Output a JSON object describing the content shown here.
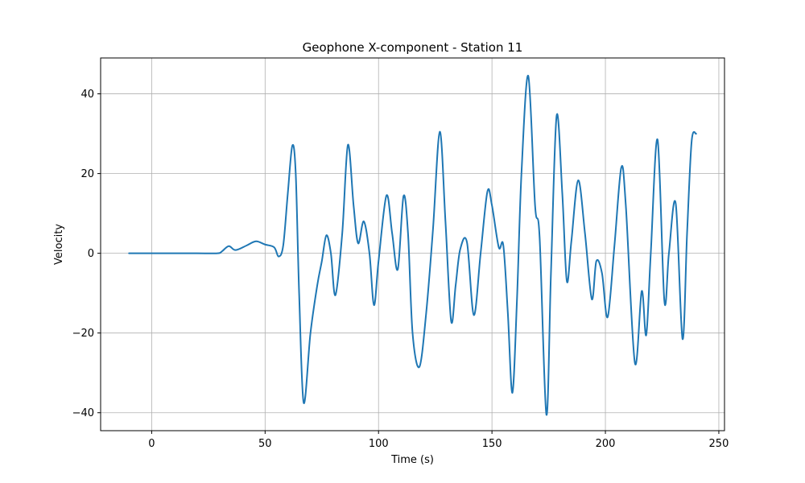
{
  "chart_data": {
    "type": "line",
    "title": "Geophone X-component - Station 11",
    "xlabel": "Time (s)",
    "ylabel": "Velocity",
    "xlim": [
      -22.5,
      252.5
    ],
    "ylim": [
      -44.5,
      49
    ],
    "xticks": [
      0,
      50,
      100,
      150,
      200,
      250
    ],
    "yticks": [
      -40,
      -20,
      0,
      20,
      40
    ],
    "grid": true,
    "series": [
      {
        "color": "#1f77b4",
        "x": [
          -10,
          0,
          10,
          20,
          29,
          31,
          34,
          37,
          42,
          46,
          50,
          54,
          56,
          58,
          60,
          62,
          63.5,
          65,
          67,
          70,
          73,
          75,
          77,
          79,
          81,
          84,
          86.5,
          89,
          91,
          93.5,
          96,
          98,
          100,
          103.5,
          106,
          108.5,
          111,
          113,
          115,
          118,
          121,
          124,
          127,
          129.5,
          132,
          134,
          136,
          139,
          142,
          145,
          148,
          150,
          153,
          155,
          157,
          159,
          161,
          163,
          166,
          169,
          171,
          174,
          176,
          178.5,
          181,
          183,
          185,
          188,
          191,
          194,
          196,
          198.5,
          201,
          204,
          207,
          209,
          213,
          216,
          218,
          220,
          223,
          226,
          228,
          231,
          234,
          236,
          238,
          240
        ],
        "y": [
          0,
          0,
          0,
          0,
          0,
          0.5,
          1.8,
          0.8,
          2,
          3,
          2.2,
          1.5,
          -0.8,
          2,
          15,
          27,
          20,
          -10,
          -37.5,
          -20,
          -8,
          -2,
          4.5,
          0,
          -10.5,
          5,
          27.2,
          12,
          2.5,
          8,
          0,
          -13,
          -2,
          14.5,
          5,
          -4,
          14.3,
          5,
          -20,
          -28.5,
          -15,
          6,
          30.5,
          8,
          -17,
          -8,
          1,
          2.7,
          -15.5,
          0,
          15.5,
          12,
          1.5,
          2,
          -15,
          -35,
          -12,
          20,
          44.5,
          12,
          4,
          -40.5,
          -5,
          34.5,
          15,
          -7,
          3,
          18.3,
          5,
          -11.5,
          -2,
          -5,
          -16,
          2,
          21.5,
          12,
          -27.5,
          -9.5,
          -20.5,
          0,
          28.5,
          -12,
          0,
          12.5,
          -21.5,
          5,
          28,
          30
        ]
      }
    ]
  }
}
